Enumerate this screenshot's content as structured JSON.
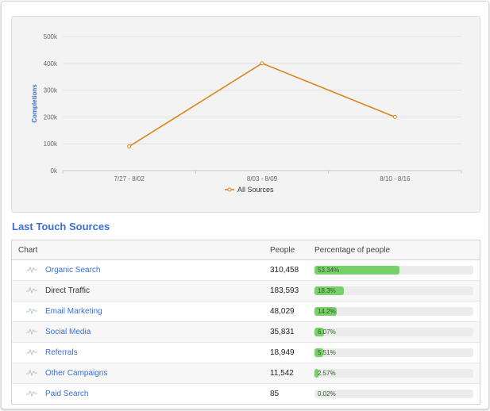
{
  "chart_data": {
    "type": "line",
    "categories": [
      "7/27 - 8/02",
      "8/03 - 8/09",
      "8/10 - 8/16"
    ],
    "series": [
      {
        "name": "All Sources",
        "values": [
          90000,
          400000,
          200000
        ]
      }
    ],
    "ylabel": "Completions",
    "xlabel": "",
    "ylim": [
      0,
      500000
    ],
    "yticks": [
      "0k",
      "100k",
      "200k",
      "300k",
      "400k",
      "500k"
    ],
    "legend": "bottom-center",
    "grid": true,
    "series_color": "#d9861c"
  },
  "section_title": "Last Touch Sources",
  "table": {
    "headers": {
      "chart": "Chart",
      "people": "People",
      "percentage": "Percentage of people"
    },
    "rows": [
      {
        "name": "Organic Search",
        "people": "310,458",
        "pct_label": "53.34%",
        "pct": 53.34,
        "link": true
      },
      {
        "name": "Direct Traffic",
        "people": "183,593",
        "pct_label": "18.3%",
        "pct": 18.3,
        "link": false
      },
      {
        "name": "Email Marketing",
        "people": "48,029",
        "pct_label": "14.2%",
        "pct": 14.2,
        "link": true
      },
      {
        "name": "Social Media",
        "people": "35,831",
        "pct_label": "6.07%",
        "pct": 6.07,
        "link": true
      },
      {
        "name": "Referrals",
        "people": "18,949",
        "pct_label": "5.51%",
        "pct": 5.51,
        "link": true
      },
      {
        "name": "Other Campaigns",
        "people": "11,542",
        "pct_label": "2.57%",
        "pct": 2.57,
        "link": true
      },
      {
        "name": "Paid Search",
        "people": "85",
        "pct_label": "0.02%",
        "pct": 0.02,
        "link": true
      }
    ]
  },
  "colors": {
    "accent": "#3b6fd6",
    "bar": "#77d06a"
  },
  "icons": {
    "row_chart": "sparkline-icon"
  }
}
